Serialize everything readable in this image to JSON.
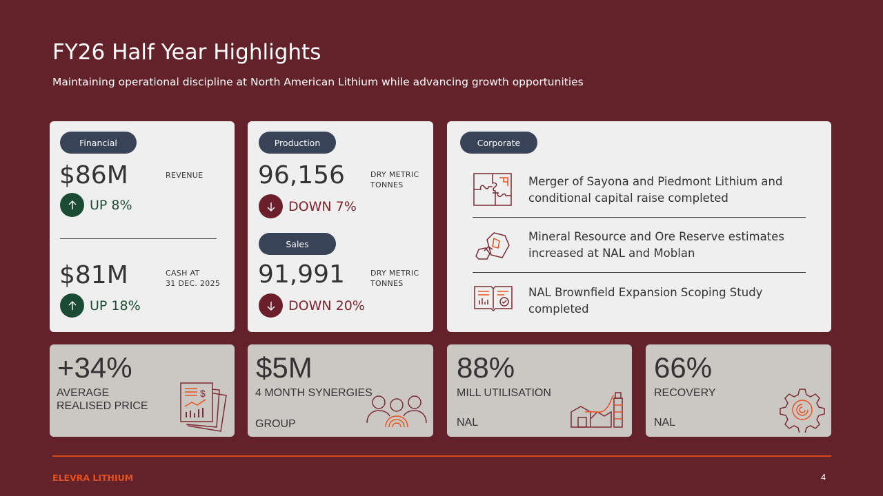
{
  "header": {
    "title": "FY26 Half Year Highlights",
    "subtitle": "Maintaining operational discipline at North American Lithium while advancing growth opportunities"
  },
  "financial": {
    "pill": "Financial",
    "revenue_value": "$86M",
    "revenue_label": "REVENUE",
    "revenue_change": "UP 8%",
    "cash_value": "$81M",
    "cash_label_1": "CASH AT",
    "cash_label_2": "31 DEC. 2025",
    "cash_change": "UP 18%"
  },
  "production": {
    "pill": "Production",
    "value": "96,156",
    "unit_1": "DRY METRIC",
    "unit_2": "TONNES",
    "change": "DOWN 7%"
  },
  "sales": {
    "pill": "Sales",
    "value": "91,991",
    "unit_1": "DRY METRIC",
    "unit_2": "TONNES",
    "change": "DOWN 20%"
  },
  "corporate": {
    "pill": "Corporate",
    "items": [
      {
        "text_1": "Merger of Sayona and Piedmont Lithium and",
        "text_2": "conditional capital raise completed",
        "icon": "puzzle-icon"
      },
      {
        "text_1": "Mineral Resource and Ore Reserve estimates",
        "text_2": "increased at NAL and Moblan",
        "icon": "ore-rocks-icon"
      },
      {
        "text_1": "NAL Brownfield Expansion Scoping Study",
        "text_2": "completed",
        "icon": "study-book-icon"
      }
    ]
  },
  "kpis": [
    {
      "value": "+34%",
      "label_1": "AVERAGE",
      "label_2": "REALISED PRICE",
      "label_3": "",
      "icon": "price-report-icon"
    },
    {
      "value": "$5M",
      "label_1": "4 MONTH SYNERGIES",
      "label_2": "",
      "label_3": "GROUP",
      "icon": "team-icon"
    },
    {
      "value": "88%",
      "label_1": "MILL UTILISATION",
      "label_2": "",
      "label_3": "NAL",
      "icon": "mill-plant-icon"
    },
    {
      "value": "66%",
      "label_1": "RECOVERY",
      "label_2": "",
      "label_3": "NAL",
      "icon": "recovery-gear-icon"
    }
  ],
  "footer": {
    "brand": "ELEVRA LITHIUM",
    "page": "4"
  },
  "colors": {
    "background": "#63212a",
    "pill": "#384357",
    "up": "#1a4b33",
    "down": "#6b1f2b",
    "accent": "#e8501d"
  }
}
